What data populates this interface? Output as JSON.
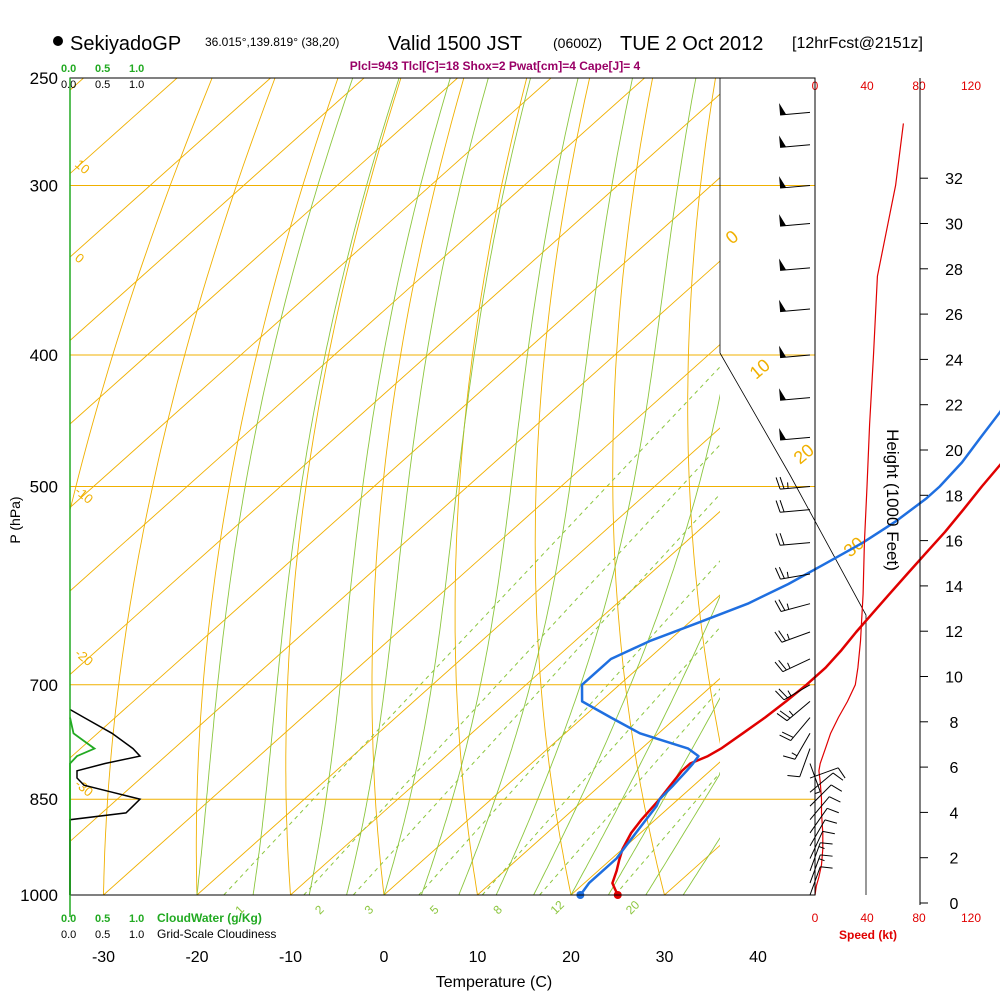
{
  "header": {
    "station": "SekiyadoGP",
    "coords": "36.015°,139.819° (38,20)",
    "valid": "Valid 1500 JST",
    "utc": "(0600Z)",
    "date": "TUE 2 Oct 2012",
    "forecast": "[12hrFcst@2151z]",
    "indices": "Plcl=943 Tlcl[C]=18 Shox=2 Pwat[cm]=4 Cape[J]= 4"
  },
  "colors": {
    "temperature": "#e00000",
    "dewpoint": "#1f6fe0",
    "isobar": "#f0b000",
    "isotherm": "#f0b000",
    "dry_adiabat": "#f0b000",
    "moist_adiabat": "#8cc63f",
    "mixing_ratio": "#8cc63f",
    "cloud_water": "#22aa22",
    "speed": "#e00000",
    "indices": "#990066"
  },
  "chart_data": {
    "type": "line",
    "title": "Skew-T log-P sounding",
    "xlabel": "Temperature (C)",
    "ylabel": "P (hPa)",
    "y2label": "Height (1000 Feet)",
    "xlim": [
      -35,
      47
    ],
    "ylim": [
      1000,
      250
    ],
    "x_ticks": [
      -30,
      -20,
      -10,
      0,
      10,
      20,
      30,
      40
    ],
    "pressure_ticks": [
      250,
      300,
      400,
      500,
      700,
      850,
      1000
    ],
    "height_ticks": [
      0,
      2,
      4,
      6,
      8,
      10,
      12,
      14,
      16,
      18,
      20,
      22,
      24,
      26,
      28,
      30,
      32
    ],
    "series": [
      {
        "name": "Temperature",
        "unit": "C",
        "points": [
          [
            1000,
            25
          ],
          [
            990,
            24
          ],
          [
            980,
            23
          ],
          [
            960,
            22
          ],
          [
            943,
            21
          ],
          [
            925,
            20
          ],
          [
            900,
            19
          ],
          [
            880,
            18.5
          ],
          [
            850,
            18
          ],
          [
            830,
            17.5
          ],
          [
            810,
            17
          ],
          [
            800,
            17
          ],
          [
            790,
            18
          ],
          [
            780,
            18.5
          ],
          [
            760,
            19
          ],
          [
            740,
            19.5
          ],
          [
            720,
            19.8
          ],
          [
            700,
            20
          ],
          [
            680,
            20
          ],
          [
            660,
            19.6
          ],
          [
            640,
            19
          ],
          [
            620,
            18.5
          ],
          [
            600,
            18
          ],
          [
            580,
            17.5
          ],
          [
            560,
            17
          ],
          [
            540,
            16.5
          ],
          [
            520,
            15.8
          ],
          [
            500,
            15
          ],
          [
            480,
            14.3
          ],
          [
            460,
            13.6
          ],
          [
            440,
            12.8
          ],
          [
            420,
            12
          ],
          [
            400,
            11
          ],
          [
            380,
            10
          ],
          [
            360,
            9
          ],
          [
            340,
            8
          ],
          [
            320,
            7
          ],
          [
            300,
            6
          ],
          [
            290,
            5.7
          ],
          [
            280,
            5.5
          ],
          [
            260,
            5.7
          ]
        ]
      },
      {
        "name": "Dewpoint",
        "unit": "C",
        "points": [
          [
            1000,
            21
          ],
          [
            980,
            20.5
          ],
          [
            960,
            20.5
          ],
          [
            940,
            20.5
          ],
          [
            920,
            20
          ],
          [
            900,
            19.5
          ],
          [
            880,
            19
          ],
          [
            860,
            18.5
          ],
          [
            850,
            18
          ],
          [
            830,
            17.8
          ],
          [
            810,
            17.5
          ],
          [
            800,
            17.3
          ],
          [
            790,
            17
          ],
          [
            780,
            15
          ],
          [
            760,
            8
          ],
          [
            740,
            3
          ],
          [
            720,
            -2
          ],
          [
            700,
            -4
          ],
          [
            680,
            -4
          ],
          [
            670,
            -4
          ],
          [
            650,
            -2
          ],
          [
            630,
            1
          ],
          [
            610,
            4
          ],
          [
            590,
            6
          ],
          [
            570,
            7.5
          ],
          [
            550,
            9
          ],
          [
            530,
            10
          ],
          [
            510,
            10.5
          ],
          [
            500,
            10.5
          ],
          [
            480,
            10
          ],
          [
            460,
            9
          ],
          [
            440,
            8
          ],
          [
            420,
            6
          ],
          [
            400,
            4
          ],
          [
            380,
            2.5
          ],
          [
            360,
            1.5
          ],
          [
            340,
            1
          ],
          [
            320,
            0.5
          ],
          [
            300,
            0
          ],
          [
            285,
            -1
          ],
          [
            270,
            -2
          ],
          [
            260,
            -3
          ]
        ]
      }
    ],
    "isotherm_labels": [
      {
        "label": "10",
        "value": 10
      },
      {
        "label": "0",
        "value": 0
      },
      {
        "label": "-10",
        "value": -10
      },
      {
        "label": "-20",
        "value": -20
      },
      {
        "label": "-30",
        "value": -30
      }
    ],
    "dry_adiabat_labels": [
      {
        "label": "0",
        "value": 0
      },
      {
        "label": "10",
        "value": 10
      },
      {
        "label": "20",
        "value": 20
      },
      {
        "label": "30",
        "value": 30
      }
    ],
    "mixing_ratio_labels": [
      {
        "label": "1",
        "value": 1
      },
      {
        "label": "2",
        "value": 2
      },
      {
        "label": "3",
        "value": 3
      },
      {
        "label": "5",
        "value": 5
      },
      {
        "label": "8",
        "value": 8
      },
      {
        "label": "12",
        "value": 12
      },
      {
        "label": "20",
        "value": 20
      }
    ],
    "cloud_water_label": "CloudWater (g/Kg)",
    "cloudiness_label": "Grid-Scale Cloudiness",
    "cloud_scale": [
      "0.0",
      "0.5",
      "1.0"
    ],
    "cloud_water": [
      [
        1000,
        0
      ],
      [
        800,
        0
      ],
      [
        790,
        0.1
      ],
      [
        780,
        0.35
      ],
      [
        770,
        0.2
      ],
      [
        760,
        0.05
      ],
      [
        740,
        0
      ]
    ],
    "cloudiness": [
      [
        1000,
        0
      ],
      [
        880,
        0
      ],
      [
        870,
        0.8
      ],
      [
        860,
        0.9
      ],
      [
        850,
        1.0
      ],
      [
        840,
        0.6
      ],
      [
        830,
        0.2
      ],
      [
        820,
        0.1
      ],
      [
        810,
        0.1
      ],
      [
        800,
        0.5
      ],
      [
        790,
        1.0
      ],
      [
        780,
        0.9
      ],
      [
        760,
        0.6
      ],
      [
        740,
        0.2
      ],
      [
        730,
        0
      ]
    ],
    "speed_label": "Speed (kt)",
    "speed_ticks": [
      0,
      40,
      80,
      120
    ],
    "speed_xlim": [
      0,
      120
    ],
    "wind_speed_profile": [
      [
        1000,
        0
      ],
      [
        985,
        1
      ],
      [
        970,
        3
      ],
      [
        950,
        5
      ],
      [
        925,
        6
      ],
      [
        900,
        6
      ],
      [
        870,
        5
      ],
      [
        850,
        5
      ],
      [
        825,
        4
      ],
      [
        810,
        3
      ],
      [
        800,
        4
      ],
      [
        780,
        8
      ],
      [
        760,
        12
      ],
      [
        740,
        18
      ],
      [
        720,
        25
      ],
      [
        700,
        31
      ],
      [
        680,
        33
      ],
      [
        650,
        35
      ],
      [
        600,
        37
      ],
      [
        550,
        38
      ],
      [
        500,
        40
      ],
      [
        450,
        42
      ],
      [
        400,
        45
      ],
      [
        350,
        48
      ],
      [
        300,
        62
      ],
      [
        270,
        68
      ]
    ],
    "wind_barbs": [
      {
        "p": 1000,
        "dir": 20,
        "spd": 12
      },
      {
        "p": 980,
        "dir": 20,
        "spd": 18
      },
      {
        "p": 960,
        "dir": 20,
        "spd": 15
      },
      {
        "p": 940,
        "dir": 25,
        "spd": 14
      },
      {
        "p": 920,
        "dir": 30,
        "spd": 12
      },
      {
        "p": 900,
        "dir": 35,
        "spd": 12
      },
      {
        "p": 880,
        "dir": 40,
        "spd": 12
      },
      {
        "p": 860,
        "dir": 45,
        "spd": 13
      },
      {
        "p": 840,
        "dir": 50,
        "spd": 14
      },
      {
        "p": 820,
        "dir": 70,
        "spd": 12
      },
      {
        "p": 800,
        "dir": 160,
        "spd": 5
      },
      {
        "p": 780,
        "dir": 200,
        "spd": 10
      },
      {
        "p": 760,
        "dir": 210,
        "spd": 15
      },
      {
        "p": 740,
        "dir": 220,
        "spd": 20
      },
      {
        "p": 720,
        "dir": 230,
        "spd": 25
      },
      {
        "p": 700,
        "dir": 240,
        "spd": 28
      },
      {
        "p": 670,
        "dir": 245,
        "spd": 25
      },
      {
        "p": 640,
        "dir": 250,
        "spd": 25
      },
      {
        "p": 610,
        "dir": 255,
        "spd": 25
      },
      {
        "p": 580,
        "dir": 260,
        "spd": 25
      },
      {
        "p": 550,
        "dir": 265,
        "spd": 20
      },
      {
        "p": 520,
        "dir": 265,
        "spd": 20
      },
      {
        "p": 500,
        "dir": 265,
        "spd": 25
      },
      {
        "p": 460,
        "dir": 265,
        "spd": 50
      },
      {
        "p": 430,
        "dir": 265,
        "spd": 50
      },
      {
        "p": 400,
        "dir": 265,
        "spd": 50
      },
      {
        "p": 370,
        "dir": 265,
        "spd": 50
      },
      {
        "p": 345,
        "dir": 265,
        "spd": 50
      },
      {
        "p": 320,
        "dir": 265,
        "spd": 50
      },
      {
        "p": 300,
        "dir": 265,
        "spd": 50
      },
      {
        "p": 280,
        "dir": 265,
        "spd": 50
      },
      {
        "p": 265,
        "dir": 265,
        "spd": 50
      }
    ]
  }
}
